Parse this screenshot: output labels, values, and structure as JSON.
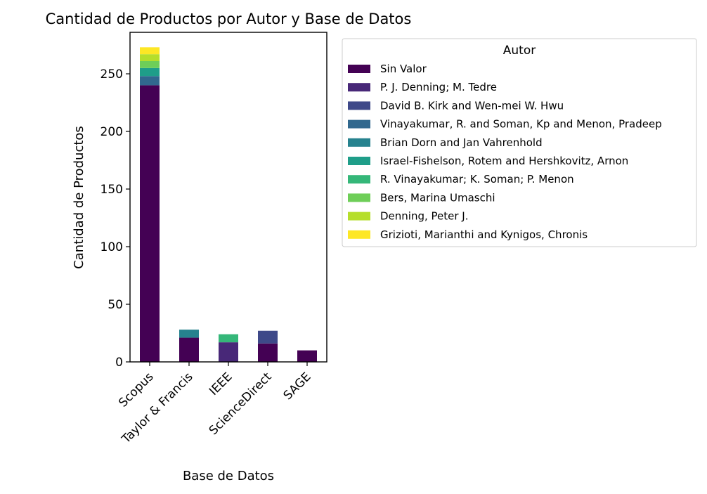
{
  "chart_data": {
    "type": "bar",
    "stacked": true,
    "title": "Cantidad de Productos por Autor y Base de Datos",
    "xlabel": "Base de Datos",
    "ylabel": "Cantidad de Productos",
    "categories": [
      "Scopus",
      "Taylor & Francis",
      "IEEE",
      "ScienceDirect",
      "SAGE"
    ],
    "ylim": [
      0,
      286
    ],
    "yticks": [
      0,
      50,
      100,
      150,
      200,
      250
    ],
    "grid": false,
    "legend": {
      "title": "Autor",
      "placement": "outside-right-top"
    },
    "series": [
      {
        "name": "Sin Valor",
        "color": "#440154",
        "values": [
          240,
          21,
          0,
          16,
          10
        ]
      },
      {
        "name": "P. J. Denning; M. Tedre",
        "color": "#482878",
        "values": [
          0,
          0,
          17,
          0,
          0
        ]
      },
      {
        "name": "David B. Kirk and Wen-mei W. Hwu",
        "color": "#3e4989",
        "values": [
          0,
          0,
          0,
          11,
          0
        ]
      },
      {
        "name": "Vinayakumar, R. and Soman, Kp and Menon, Pradeep",
        "color": "#31688e",
        "values": [
          8,
          0,
          0,
          0,
          0
        ]
      },
      {
        "name": "Brian Dorn and Jan Vahrenhold",
        "color": "#26828e",
        "values": [
          0,
          7,
          0,
          0,
          0
        ]
      },
      {
        "name": "Israel-Fishelson, Rotem and Hershkovitz, Arnon",
        "color": "#1f9e89",
        "values": [
          7,
          0,
          0,
          0,
          0
        ]
      },
      {
        "name": "R. Vinayakumar; K. Soman; P. Menon",
        "color": "#35b779",
        "values": [
          0,
          0,
          7,
          0,
          0
        ]
      },
      {
        "name": "Bers, Marina Umaschi",
        "color": "#6ece58",
        "values": [
          6,
          0,
          0,
          0,
          0
        ]
      },
      {
        "name": "Denning, Peter J.",
        "color": "#b5de2b",
        "values": [
          6,
          0,
          0,
          0,
          0
        ]
      },
      {
        "name": "Grizioti, Marianthi and Kynigos, Chronis",
        "color": "#fde725",
        "values": [
          6,
          0,
          0,
          0,
          0
        ]
      }
    ]
  }
}
